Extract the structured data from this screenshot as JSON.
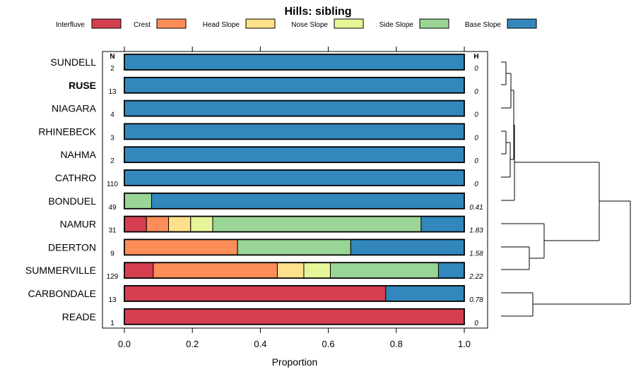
{
  "chart_data": {
    "type": "bar",
    "stacked": true,
    "orientation": "horizontal",
    "title": "Hills: sibling",
    "xlabel": "Proportion",
    "xlim": [
      0,
      1
    ],
    "xticks": [
      0.0,
      0.2,
      0.4,
      0.6,
      0.8,
      1.0
    ],
    "xtick_labels": [
      "0.0",
      "0.2",
      "0.4",
      "0.6",
      "0.8",
      "1.0"
    ],
    "n_header": "N",
    "h_header": "H",
    "legend_position": "top",
    "series": [
      {
        "name": "Interfluve",
        "color": "#d53e4f"
      },
      {
        "name": "Crest",
        "color": "#fc8d59"
      },
      {
        "name": "Head Slope",
        "color": "#fee08b"
      },
      {
        "name": "Nose Slope",
        "color": "#e6f598"
      },
      {
        "name": "Side Slope",
        "color": "#99d594"
      },
      {
        "name": "Base Slope",
        "color": "#3288bd"
      }
    ],
    "rows": [
      {
        "label": "SUNDELL",
        "bold": false,
        "n": "2",
        "h": "0",
        "values": [
          0,
          0,
          0,
          0,
          0,
          1.0
        ]
      },
      {
        "label": "RUSE",
        "bold": true,
        "n": "13",
        "h": "0",
        "values": [
          0,
          0,
          0,
          0,
          0,
          1.0
        ]
      },
      {
        "label": "NIAGARA",
        "bold": false,
        "n": "4",
        "h": "0",
        "values": [
          0,
          0,
          0,
          0,
          0,
          1.0
        ]
      },
      {
        "label": "RHINEBECK",
        "bold": false,
        "n": "3",
        "h": "0",
        "values": [
          0,
          0,
          0,
          0,
          0,
          1.0
        ]
      },
      {
        "label": "NAHMA",
        "bold": false,
        "n": "2",
        "h": "0",
        "values": [
          0,
          0,
          0,
          0,
          0,
          1.0
        ]
      },
      {
        "label": "CATHRO",
        "bold": false,
        "n": "110",
        "h": "0",
        "values": [
          0,
          0,
          0,
          0,
          0,
          1.0
        ]
      },
      {
        "label": "BONDUEL",
        "bold": false,
        "n": "49",
        "h": "0.41",
        "values": [
          0,
          0,
          0,
          0,
          0.08,
          0.92
        ]
      },
      {
        "label": "NAMUR",
        "bold": false,
        "n": "31",
        "h": "1.83",
        "values": [
          0.065,
          0.065,
          0.065,
          0.065,
          0.613,
          0.127
        ]
      },
      {
        "label": "DEERTON",
        "bold": false,
        "n": "9",
        "h": "1.58",
        "values": [
          0,
          0.333,
          0,
          0,
          0.333,
          0.334
        ]
      },
      {
        "label": "SUMMERVILLE",
        "bold": false,
        "n": "129",
        "h": "2.22",
        "values": [
          0.085,
          0.365,
          0.078,
          0.078,
          0.318,
          0.076
        ]
      },
      {
        "label": "CARBONDALE",
        "bold": false,
        "n": "13",
        "h": "0.78",
        "values": [
          0.769,
          0,
          0,
          0,
          0,
          0.231
        ]
      },
      {
        "label": "READE",
        "bold": false,
        "n": "1",
        "h": "0",
        "values": [
          1.0,
          0,
          0,
          0,
          0,
          0
        ]
      }
    ]
  }
}
